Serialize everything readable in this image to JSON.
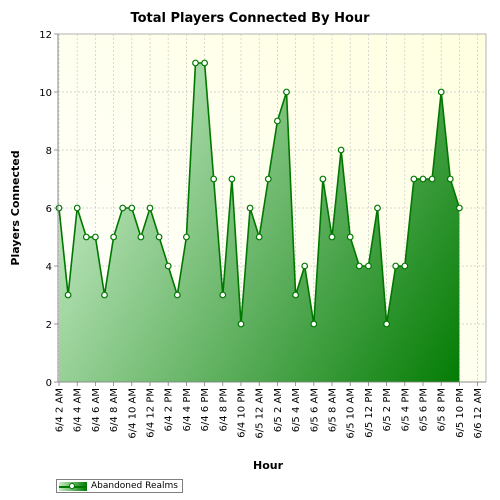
{
  "chart_data": {
    "type": "area",
    "title": "Total Players Connected By Hour",
    "xlabel": "Hour",
    "ylabel": "Players Connected",
    "ylim": [
      0,
      12
    ],
    "yticks": [
      0,
      2,
      4,
      6,
      8,
      10,
      12
    ],
    "grid": true,
    "legend": "bottom-left",
    "x_tick_labels": [
      "6/4 2 AM",
      "6/4 4 AM",
      "6/4 6 AM",
      "6/4 8 AM",
      "6/4 10 AM",
      "6/4 12 PM",
      "6/4 2 PM",
      "6/4 4 PM",
      "6/4 6 PM",
      "6/4 8 PM",
      "6/4 10 PM",
      "6/5 12 AM",
      "6/5 2 AM",
      "6/5 4 AM",
      "6/5 6 AM",
      "6/5 8 AM",
      "6/5 10 AM",
      "6/5 12 PM",
      "6/5 2 PM",
      "6/5 4 PM",
      "6/5 6 PM",
      "6/5 8 PM",
      "6/5 10 PM",
      "6/6 12 AM"
    ],
    "series": [
      {
        "name": "Abandoned Realms",
        "values": [
          6,
          3,
          6,
          5,
          5,
          3,
          5,
          6,
          6,
          5,
          6,
          5,
          4,
          3,
          5,
          11,
          11,
          7,
          3,
          7,
          2,
          6,
          5,
          7,
          9,
          10,
          3,
          4,
          2,
          7,
          5,
          8,
          5,
          4,
          4,
          6,
          2,
          4,
          4,
          7,
          7,
          7,
          10,
          7,
          6
        ]
      }
    ]
  },
  "colors": {
    "line": "#007800",
    "fill_dark": "#007a00",
    "fill_light": "#c8ecc8",
    "plot_bg_light": "#ffffe0",
    "plot_bg_white": "#ffffff",
    "grid": "#c8c8c8"
  }
}
